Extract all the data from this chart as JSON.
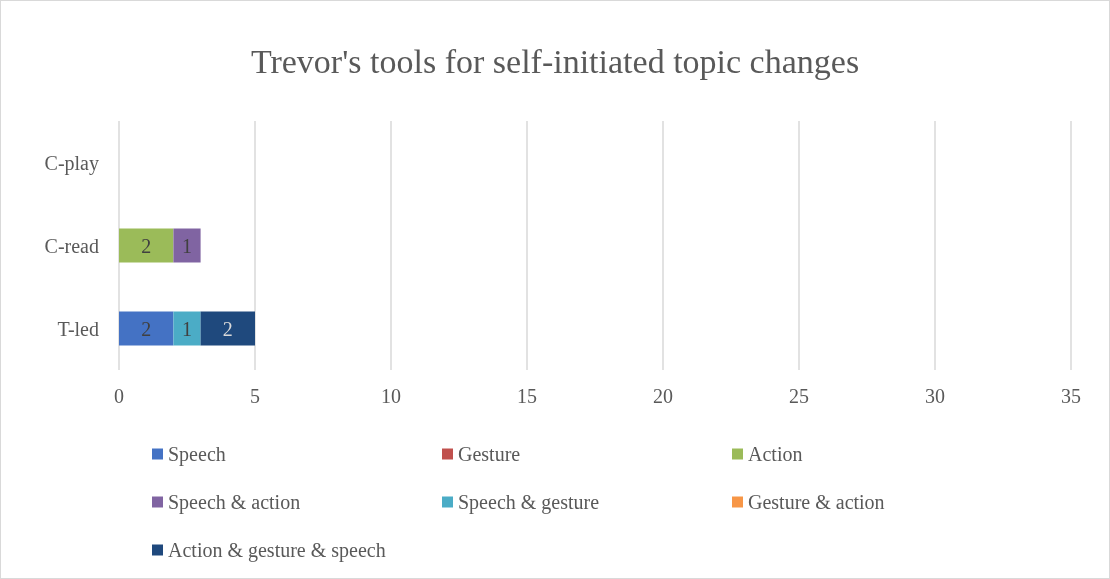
{
  "chart_data": {
    "type": "bar",
    "orientation": "horizontal",
    "stacked": true,
    "title": "Trevor's tools for self-initiated topic changes",
    "categories": [
      "C-play",
      "C-read",
      "T-led"
    ],
    "series": [
      {
        "name": "Speech",
        "color": "#4472c4",
        "values": [
          0,
          0,
          2
        ],
        "value_labels": [
          null,
          null,
          "2"
        ]
      },
      {
        "name": "Gesture",
        "color": "#c0504d",
        "values": [
          0,
          0,
          0
        ],
        "value_labels": [
          null,
          null,
          null
        ]
      },
      {
        "name": "Action",
        "color": "#9bbb59",
        "values": [
          0,
          2,
          0
        ],
        "value_labels": [
          null,
          "2",
          null
        ]
      },
      {
        "name": "Speech & action",
        "color": "#8064a2",
        "values": [
          0,
          1,
          0
        ],
        "value_labels": [
          null,
          "1",
          null
        ]
      },
      {
        "name": "Speech & gesture",
        "color": "#4bacc6",
        "values": [
          0,
          0,
          1
        ],
        "value_labels": [
          null,
          null,
          "1"
        ]
      },
      {
        "name": "Gesture & action",
        "color": "#f79646",
        "values": [
          0,
          0,
          0
        ],
        "value_labels": [
          null,
          null,
          null
        ]
      },
      {
        "name": "Action & gesture & speech",
        "color": "#1f497d",
        "values": [
          0,
          0,
          2
        ],
        "value_labels": [
          null,
          null,
          "2"
        ]
      }
    ],
    "xlim": [
      0,
      35
    ],
    "xticks": [
      0,
      5,
      10,
      15,
      20,
      25,
      30,
      35
    ],
    "grid": "x",
    "legend": "bottom"
  }
}
